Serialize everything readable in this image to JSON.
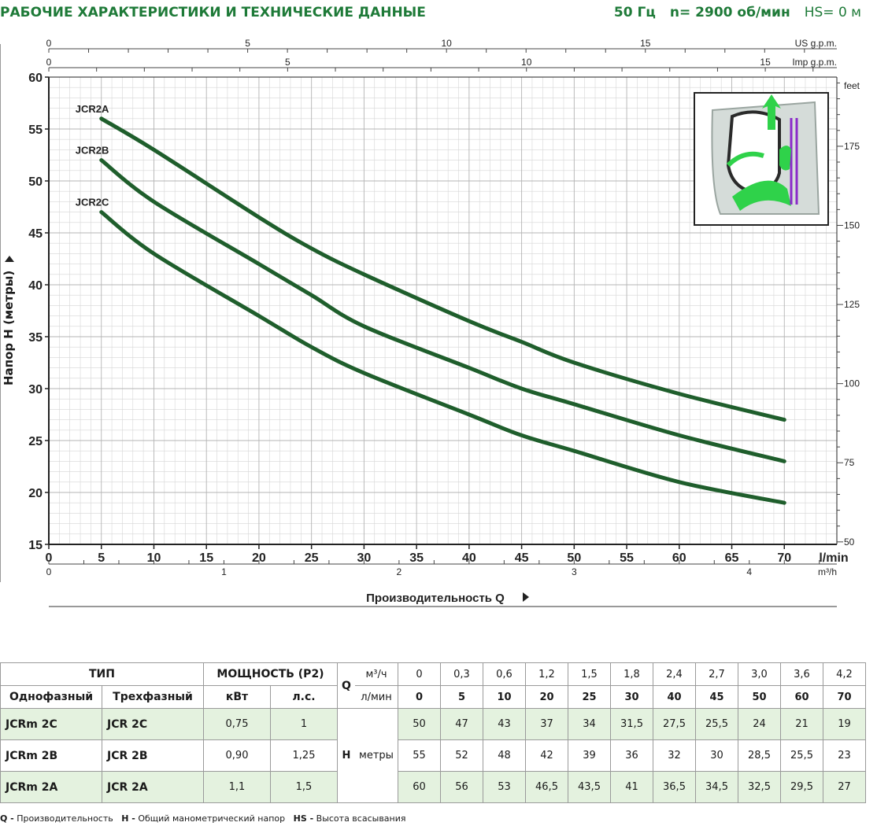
{
  "header": {
    "title": "РАБОЧИЕ ХАРАКТЕРИСТИКИ И ТЕХНИЧЕСКИЕ ДАННЫЕ",
    "frequency": "50 Гц",
    "speed": "n= 2900 об/мин",
    "suction": "HS= 0 м"
  },
  "chart_data": {
    "type": "line",
    "title": "",
    "xlabel": "Производительность Q",
    "ylabel": "Напор H (метры)",
    "x_unit": "l/min",
    "y_unit": "m",
    "xlim": [
      0,
      75
    ],
    "ylim": [
      15,
      60
    ],
    "x_ticks": [
      0,
      5,
      10,
      15,
      20,
      25,
      30,
      35,
      40,
      45,
      50,
      55,
      60,
      65,
      70
    ],
    "y_ticks": [
      15,
      20,
      25,
      30,
      35,
      40,
      45,
      50,
      55,
      60
    ],
    "grid": true,
    "secondary_axes": {
      "us_gpm": {
        "label": "US g.p.m.",
        "ticks": [
          0,
          5,
          10,
          15
        ]
      },
      "imp_gpm": {
        "label": "Imp g.p.m.",
        "ticks": [
          0,
          5,
          10,
          15
        ]
      },
      "m3h": {
        "label": "m³/h",
        "ticks": [
          0,
          1,
          2,
          3,
          4
        ]
      },
      "feet": {
        "label": "feet",
        "ticks": [
          50,
          75,
          100,
          125,
          150,
          175
        ]
      }
    },
    "series": [
      {
        "name": "JCR2A",
        "color": "#1f5e2c",
        "x": [
          5,
          10,
          20,
          25,
          30,
          40,
          45,
          50,
          60,
          70
        ],
        "y": [
          56,
          53,
          46.5,
          43.5,
          41,
          36.5,
          34.5,
          32.5,
          29.5,
          27
        ]
      },
      {
        "name": "JCR2B",
        "color": "#1f5e2c",
        "x": [
          5,
          10,
          20,
          25,
          30,
          40,
          45,
          50,
          60,
          70
        ],
        "y": [
          52,
          48,
          42,
          39,
          36,
          32,
          30,
          28.5,
          25.5,
          23
        ]
      },
      {
        "name": "JCR2C",
        "color": "#1f5e2c",
        "x": [
          5,
          10,
          20,
          25,
          30,
          40,
          45,
          50,
          60,
          70
        ],
        "y": [
          47,
          43,
          37,
          34,
          31.5,
          27.5,
          25.5,
          24,
          21,
          19
        ]
      }
    ]
  },
  "table": {
    "type_header": "ТИП",
    "power_header": "МОЩНОСТЬ (P2)",
    "single_phase": "Однофазный",
    "three_phase": "Трехфазный",
    "kw": "кВт",
    "hp": "л.с.",
    "q_label": "Q",
    "m3h_unit": "м³/ч",
    "lmin_unit": "л/мин",
    "h_label": "H",
    "h_unit": "метры",
    "m3h_values": [
      "0",
      "0,3",
      "0,6",
      "1,2",
      "1,5",
      "1,8",
      "2,4",
      "2,7",
      "3,0",
      "3,6",
      "4,2"
    ],
    "lmin_values": [
      "0",
      "5",
      "10",
      "20",
      "25",
      "30",
      "40",
      "45",
      "50",
      "60",
      "70"
    ],
    "rows": [
      {
        "single": "JCRm 2C",
        "three": "JCR 2C",
        "kw": "0,75",
        "hp": "1",
        "h": [
          "50",
          "47",
          "43",
          "37",
          "34",
          "31,5",
          "27,5",
          "25,5",
          "24",
          "21",
          "19"
        ]
      },
      {
        "single": "JCRm 2B",
        "three": "JCR 2B",
        "kw": "0,90",
        "hp": "1,25",
        "h": [
          "55",
          "52",
          "48",
          "42",
          "39",
          "36",
          "32",
          "30",
          "28,5",
          "25,5",
          "23"
        ]
      },
      {
        "single": "JCRm 2A",
        "three": "JCR 2A",
        "kw": "1,1",
        "hp": "1,5",
        "h": [
          "60",
          "56",
          "53",
          "46,5",
          "43,5",
          "41",
          "36,5",
          "34,5",
          "32,5",
          "29,5",
          "27"
        ]
      }
    ]
  },
  "footer": {
    "q_key": "Q -",
    "q_text": "Производительность",
    "h_key": "H -",
    "h_text": "Общий манометрический напор",
    "hs_key": "HS -",
    "hs_text": "Высота всасывания"
  }
}
